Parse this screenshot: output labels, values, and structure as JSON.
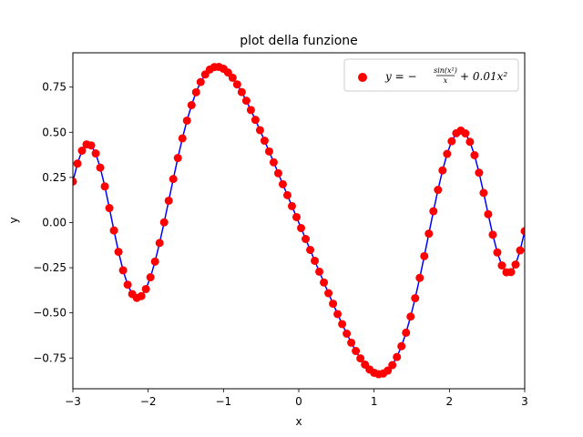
{
  "chart_data": {
    "type": "scatter",
    "title": "plot della funzione",
    "xlabel": "x",
    "ylabel": "y",
    "xlim": [
      -3,
      3
    ],
    "ylim": [
      -0.92,
      0.94
    ],
    "xticks": [
      -3,
      -2,
      -1,
      0,
      1,
      2,
      3
    ],
    "xtick_labels": [
      "−3",
      "−2",
      "−1",
      "0",
      "1",
      "2",
      "3"
    ],
    "yticks": [
      -0.75,
      -0.5,
      -0.25,
      0.0,
      0.25,
      0.5,
      0.75
    ],
    "ytick_labels": [
      "−0.75",
      "−0.50",
      "−0.25",
      "0.00",
      "0.25",
      "0.50",
      "0.75"
    ],
    "grid": false,
    "legend_position": "top-right",
    "legend_label": "y = −sin(x²)/x + 0.01x²",
    "legend": {
      "prefix": "y = −",
      "numerator": "sin(x²)",
      "denominator": "x",
      "suffix": "+ 0.01x²"
    },
    "formula": "y = -sin(x^2)/x + 0.01*x^2",
    "x_range": [
      -3,
      3
    ],
    "n_points": 100,
    "colors": {
      "markers": "#ff0000",
      "line": "#0000ff"
    },
    "series": [
      {
        "name": "y = −sin(x²)/x + 0.01x²",
        "kind": "scatter",
        "color": "#ff0000"
      },
      {
        "kind": "line",
        "color": "#0000ff"
      }
    ]
  }
}
